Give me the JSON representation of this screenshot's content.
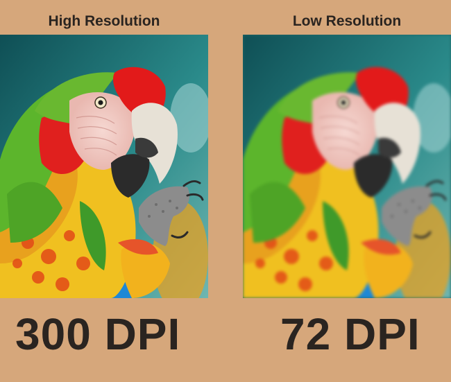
{
  "left_panel": {
    "heading": "High Resolution",
    "caption": "300 DPI",
    "image_subject": "macaw-parrot-photo-sharp"
  },
  "right_panel": {
    "heading": "Low Resolution",
    "caption": "72 DPI",
    "image_subject": "macaw-parrot-photo-blurred"
  },
  "colors": {
    "background": "#d6a77b",
    "text": "#2a2420",
    "photo_backdrop": "#1f6a6a",
    "parrot_red": "#e0201e",
    "parrot_green": "#5cb52c",
    "parrot_yellow": "#f0c020",
    "parrot_blue": "#1e88d6"
  }
}
